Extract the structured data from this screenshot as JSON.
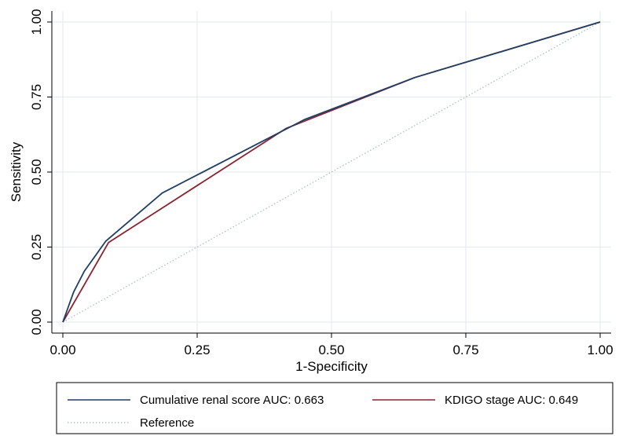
{
  "chart_data": {
    "type": "line",
    "title": "",
    "xlabel": "1-Specificity",
    "ylabel": "Sensitivity",
    "xlim": [
      0,
      1
    ],
    "ylim": [
      0,
      1
    ],
    "grid": true,
    "legend_position": "bottom",
    "xticks": [
      0,
      0.25,
      0.5,
      0.75,
      1
    ],
    "yticks": [
      0,
      0.25,
      0.5,
      0.75,
      1
    ],
    "xtick_labels": [
      "0.00",
      "0.25",
      "0.50",
      "0.75",
      "1.00"
    ],
    "ytick_labels": [
      "0.00",
      "0.25",
      "0.50",
      "0.75",
      "1.00"
    ],
    "series": [
      {
        "name": "Cumulative renal score AUC: 0.663",
        "color": "#1f3f66",
        "style": "solid",
        "x": [
          0,
          0.02,
          0.04,
          0.08,
          0.185,
          0.45,
          0.655,
          1.0
        ],
        "y": [
          0,
          0.1,
          0.17,
          0.27,
          0.43,
          0.675,
          0.815,
          1.0
        ]
      },
      {
        "name": "KDIGO stage AUC: 0.649",
        "color": "#8b2330",
        "style": "solid",
        "x": [
          0,
          0.085,
          0.415,
          0.655,
          1.0
        ],
        "y": [
          0,
          0.265,
          0.645,
          0.815,
          1.0
        ]
      },
      {
        "name": "Reference",
        "color": "#a9b9c2",
        "style": "dotted",
        "x": [
          0,
          1
        ],
        "y": [
          0,
          1
        ]
      }
    ]
  }
}
